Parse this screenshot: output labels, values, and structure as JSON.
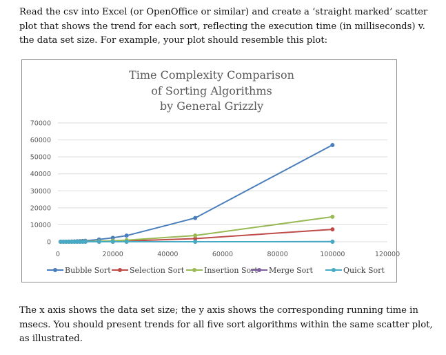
{
  "intro_text": "Read the csv into Excel (or OpenOffice or similar) and create a ‘straight marked’ scatter plot that shows the trend for each sort, reflecting the execution time (in milliseconds) v. the data set size. For example, your plot should resemble this plot:",
  "outro_text": "The x axis shows the data set size; the y axis shows the corresponding running time in msecs. You should present trends for all five sort algorithms within the same scatter plot, as illustrated.",
  "chart_data": {
    "type": "line",
    "title_lines": [
      "Time Complexity Comparison",
      "of Sorting Algorithms",
      "by General Grizzly"
    ],
    "xlabel": "",
    "ylabel": "",
    "xlim": [
      0,
      120000
    ],
    "ylim": [
      0,
      70000
    ],
    "x_ticks": [
      "0",
      "20000",
      "40000",
      "60000",
      "80000",
      "100000",
      "120000"
    ],
    "y_ticks": [
      "0",
      "10000",
      "20000",
      "30000",
      "40000",
      "50000",
      "60000",
      "70000"
    ],
    "grid": true,
    "legend_position": "bottom",
    "x": [
      1000,
      2000,
      3000,
      4000,
      5000,
      6000,
      7000,
      8000,
      9000,
      10000,
      15000,
      20000,
      25000,
      50000,
      100000
    ],
    "series": [
      {
        "name": "Bubble Sort",
        "color": "#4a7ebb",
        "values": [
          6,
          23,
          52,
          92,
          143,
          206,
          281,
          367,
          465,
          574,
          1300,
          2300,
          3600,
          14000,
          57000
        ]
      },
      {
        "name": "Selection Sort",
        "color": "#be4b48",
        "values": [
          1,
          4,
          7,
          12,
          18,
          26,
          36,
          47,
          59,
          73,
          164,
          292,
          456,
          1825,
          7300
        ]
      },
      {
        "name": "Insertion Sort",
        "color": "#98b954",
        "values": [
          2,
          6,
          13,
          23,
          37,
          53,
          72,
          94,
          119,
          147,
          331,
          588,
          919,
          3675,
          14700
        ]
      },
      {
        "name": "Merge Sort",
        "color": "#7d60a0",
        "values": [
          1,
          1,
          1,
          1,
          1,
          2,
          2,
          2,
          2,
          3,
          4,
          6,
          7,
          15,
          30
        ]
      },
      {
        "name": "Quick Sort",
        "color": "#46aac5",
        "values": [
          1,
          1,
          1,
          1,
          1,
          1,
          1,
          1,
          1,
          2,
          3,
          4,
          5,
          11,
          22
        ]
      }
    ]
  }
}
